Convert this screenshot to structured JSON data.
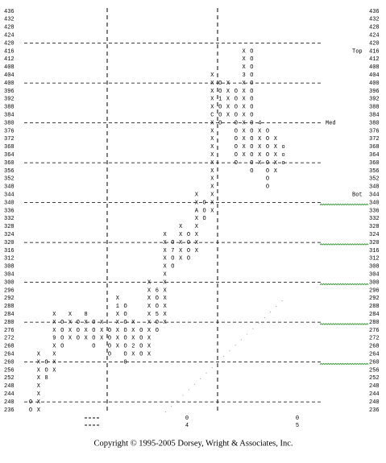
{
  "chart_data": {
    "type": "point-and-figure",
    "price_levels": [
      436,
      432,
      428,
      424,
      420,
      416,
      412,
      408,
      404,
      400,
      396,
      392,
      388,
      384,
      380,
      376,
      372,
      368,
      364,
      360,
      356,
      352,
      348,
      344,
      340,
      336,
      332,
      328,
      324,
      320,
      316,
      312,
      308,
      304,
      300,
      296,
      292,
      288,
      284,
      280,
      276,
      272,
      268,
      264,
      260,
      256,
      252,
      248,
      244,
      240,
      236
    ],
    "dashed_levels": [
      420,
      400,
      380,
      360,
      340,
      320,
      300,
      280,
      260,
      240
    ],
    "zones": [
      {
        "label": "Top",
        "price": 416
      },
      {
        "label": "Med",
        "price": 380
      },
      {
        "label": "Bot",
        "price": 344
      }
    ],
    "signal_levels": [
      340,
      320,
      300,
      280,
      260
    ],
    "columns": [
      {
        "prices": [
          240,
          236
        ],
        "marks": [
          "O",
          "O"
        ]
      },
      {
        "prices": [
          236,
          240,
          244,
          248,
          252,
          256,
          260,
          264
        ],
        "marks": [
          "X",
          "X",
          "X",
          "X",
          "X",
          "X",
          "X",
          "X"
        ]
      },
      {
        "prices": [
          260,
          256,
          252
        ],
        "marks": [
          "O",
          "O",
          "8"
        ]
      },
      {
        "prices": [
          256,
          260,
          264,
          268,
          272,
          276,
          280,
          284
        ],
        "marks": [
          "X",
          "X",
          "X",
          "X",
          "9",
          "X",
          "X",
          "X"
        ]
      },
      {
        "prices": [
          280,
          276,
          272,
          268
        ],
        "marks": [
          "O",
          "O",
          "O",
          "O"
        ]
      },
      {
        "prices": [
          272,
          276,
          280,
          284
        ],
        "marks": [
          "X",
          "X",
          "X",
          "X"
        ]
      },
      {
        "prices": [
          280,
          276,
          272
        ],
        "marks": [
          "O",
          "O",
          "O"
        ]
      },
      {
        "prices": [
          272,
          276,
          280,
          284
        ],
        "marks": [
          "X",
          "X",
          "X",
          "8"
        ]
      },
      {
        "prices": [
          280,
          276,
          272,
          268
        ],
        "marks": [
          "O",
          "O",
          "O",
          "O"
        ]
      },
      {
        "prices": [
          272,
          276,
          280
        ],
        "marks": [
          "X",
          "X",
          "X"
        ]
      },
      {
        "prices": [
          276,
          272,
          268,
          264
        ],
        "marks": [
          "O",
          "O",
          "O",
          "O"
        ]
      },
      {
        "prices": [
          268,
          272,
          276,
          280,
          284,
          288,
          292
        ],
        "marks": [
          "X",
          "X",
          "X",
          "X",
          "X",
          "1",
          "X"
        ]
      },
      {
        "prices": [
          288,
          284,
          280,
          276,
          272,
          268,
          264,
          260
        ],
        "marks": [
          "O",
          "O",
          "O",
          "O",
          "O",
          "O",
          "O",
          "0"
        ]
      },
      {
        "prices": [
          264,
          268,
          272,
          276,
          280
        ],
        "marks": [
          "X",
          "2",
          "X",
          "X",
          "X"
        ]
      },
      {
        "prices": [
          276,
          272,
          268,
          264
        ],
        "marks": [
          "O",
          "O",
          "O",
          "O"
        ]
      },
      {
        "prices": [
          264,
          268,
          272,
          276,
          280,
          284,
          288,
          292,
          296,
          300
        ],
        "marks": [
          "X",
          "X",
          "X",
          "X",
          "X",
          "X",
          "X",
          "X",
          "X",
          "X"
        ]
      },
      {
        "prices": [
          296,
          292,
          288,
          284,
          280,
          276
        ],
        "marks": [
          "6",
          "O",
          "O",
          "5",
          "O",
          "O"
        ]
      },
      {
        "prices": [
          280,
          284,
          288,
          292,
          296,
          300,
          304,
          308,
          312,
          316,
          320,
          324
        ],
        "marks": [
          "X",
          "X",
          "X",
          "X",
          "X",
          "X",
          "X",
          "X",
          "X",
          "X",
          "X",
          "X"
        ]
      },
      {
        "prices": [
          320,
          316,
          312,
          308
        ],
        "marks": [
          "O",
          "7",
          "O",
          "O"
        ]
      },
      {
        "prices": [
          312,
          316,
          320,
          324,
          328
        ],
        "marks": [
          "X",
          "X",
          "X",
          "X",
          "X"
        ]
      },
      {
        "prices": [
          324,
          320,
          316,
          312
        ],
        "marks": [
          "O",
          "O",
          "O",
          "O"
        ]
      },
      {
        "prices": [
          316,
          320,
          324,
          328,
          332,
          336,
          340,
          344
        ],
        "marks": [
          "X",
          "X",
          "X",
          "X",
          "X",
          "A",
          "X",
          "X"
        ]
      },
      {
        "prices": [
          340,
          336,
          332
        ],
        "marks": [
          "O",
          "O",
          "O"
        ]
      },
      {
        "prices": [
          336,
          340,
          344,
          348,
          352,
          356,
          360,
          364,
          368,
          372,
          376,
          380,
          384,
          388,
          392,
          396,
          400,
          404
        ],
        "marks": [
          "X",
          "X",
          "X",
          "X",
          "X",
          "X",
          "X",
          "X",
          "X",
          "X",
          "X",
          "X",
          "C",
          "X",
          "X",
          "X",
          "X",
          "X"
        ]
      },
      {
        "prices": [
          400,
          396,
          392,
          388,
          384,
          380
        ],
        "marks": [
          "O",
          "O",
          "1",
          "O",
          "O",
          "O"
        ]
      },
      {
        "prices": [
          384,
          388,
          392,
          396,
          400
        ],
        "marks": [
          "X",
          "X",
          "X",
          "X",
          "X"
        ]
      },
      {
        "prices": [
          396,
          392,
          388,
          384,
          380,
          376,
          372,
          368,
          364,
          360
        ],
        "marks": [
          "O",
          "O",
          "O",
          "O",
          "O",
          "O",
          "O",
          "O",
          "O",
          "O"
        ]
      },
      {
        "prices": [
          364,
          368,
          372,
          376,
          380,
          384,
          388,
          392,
          396,
          400,
          404,
          408,
          412,
          416
        ],
        "marks": [
          "X",
          "X",
          "X",
          "X",
          "X",
          "X",
          "X",
          "X",
          "X",
          "X",
          "3",
          "X",
          "X",
          "X"
        ]
      },
      {
        "prices": [
          416,
          412,
          408,
          404,
          400,
          396,
          392,
          388,
          384,
          380,
          376,
          372,
          368,
          364,
          360,
          356
        ],
        "marks": [
          "O",
          "O",
          "O",
          "O",
          "O",
          "O",
          "O",
          "O",
          "O",
          "O",
          "O",
          "O",
          "O",
          "O",
          "O",
          "O"
        ]
      },
      {
        "prices": [
          360,
          364,
          368,
          372,
          376,
          380
        ],
        "marks": [
          "X",
          "X",
          "X",
          "X",
          "X",
          "4"
        ]
      },
      {
        "prices": [
          376,
          372,
          368,
          364,
          360,
          356,
          352,
          348
        ],
        "marks": [
          "O",
          "O",
          "O",
          "O",
          "O",
          "O",
          "O",
          "O"
        ]
      },
      {
        "prices": [
          356,
          360,
          364,
          368,
          372
        ],
        "marks": [
          "X",
          "X",
          "X",
          "X",
          "X"
        ]
      },
      {
        "prices": [
          368,
          364,
          360
        ],
        "marks": [
          "o",
          "o",
          "o"
        ]
      }
    ],
    "bottom_labels": [
      "0",
      "4",
      "0",
      "5"
    ],
    "copyright": "Copyright © 1995-2005  Dorsey,  Wright  &  Associates,  Inc."
  }
}
